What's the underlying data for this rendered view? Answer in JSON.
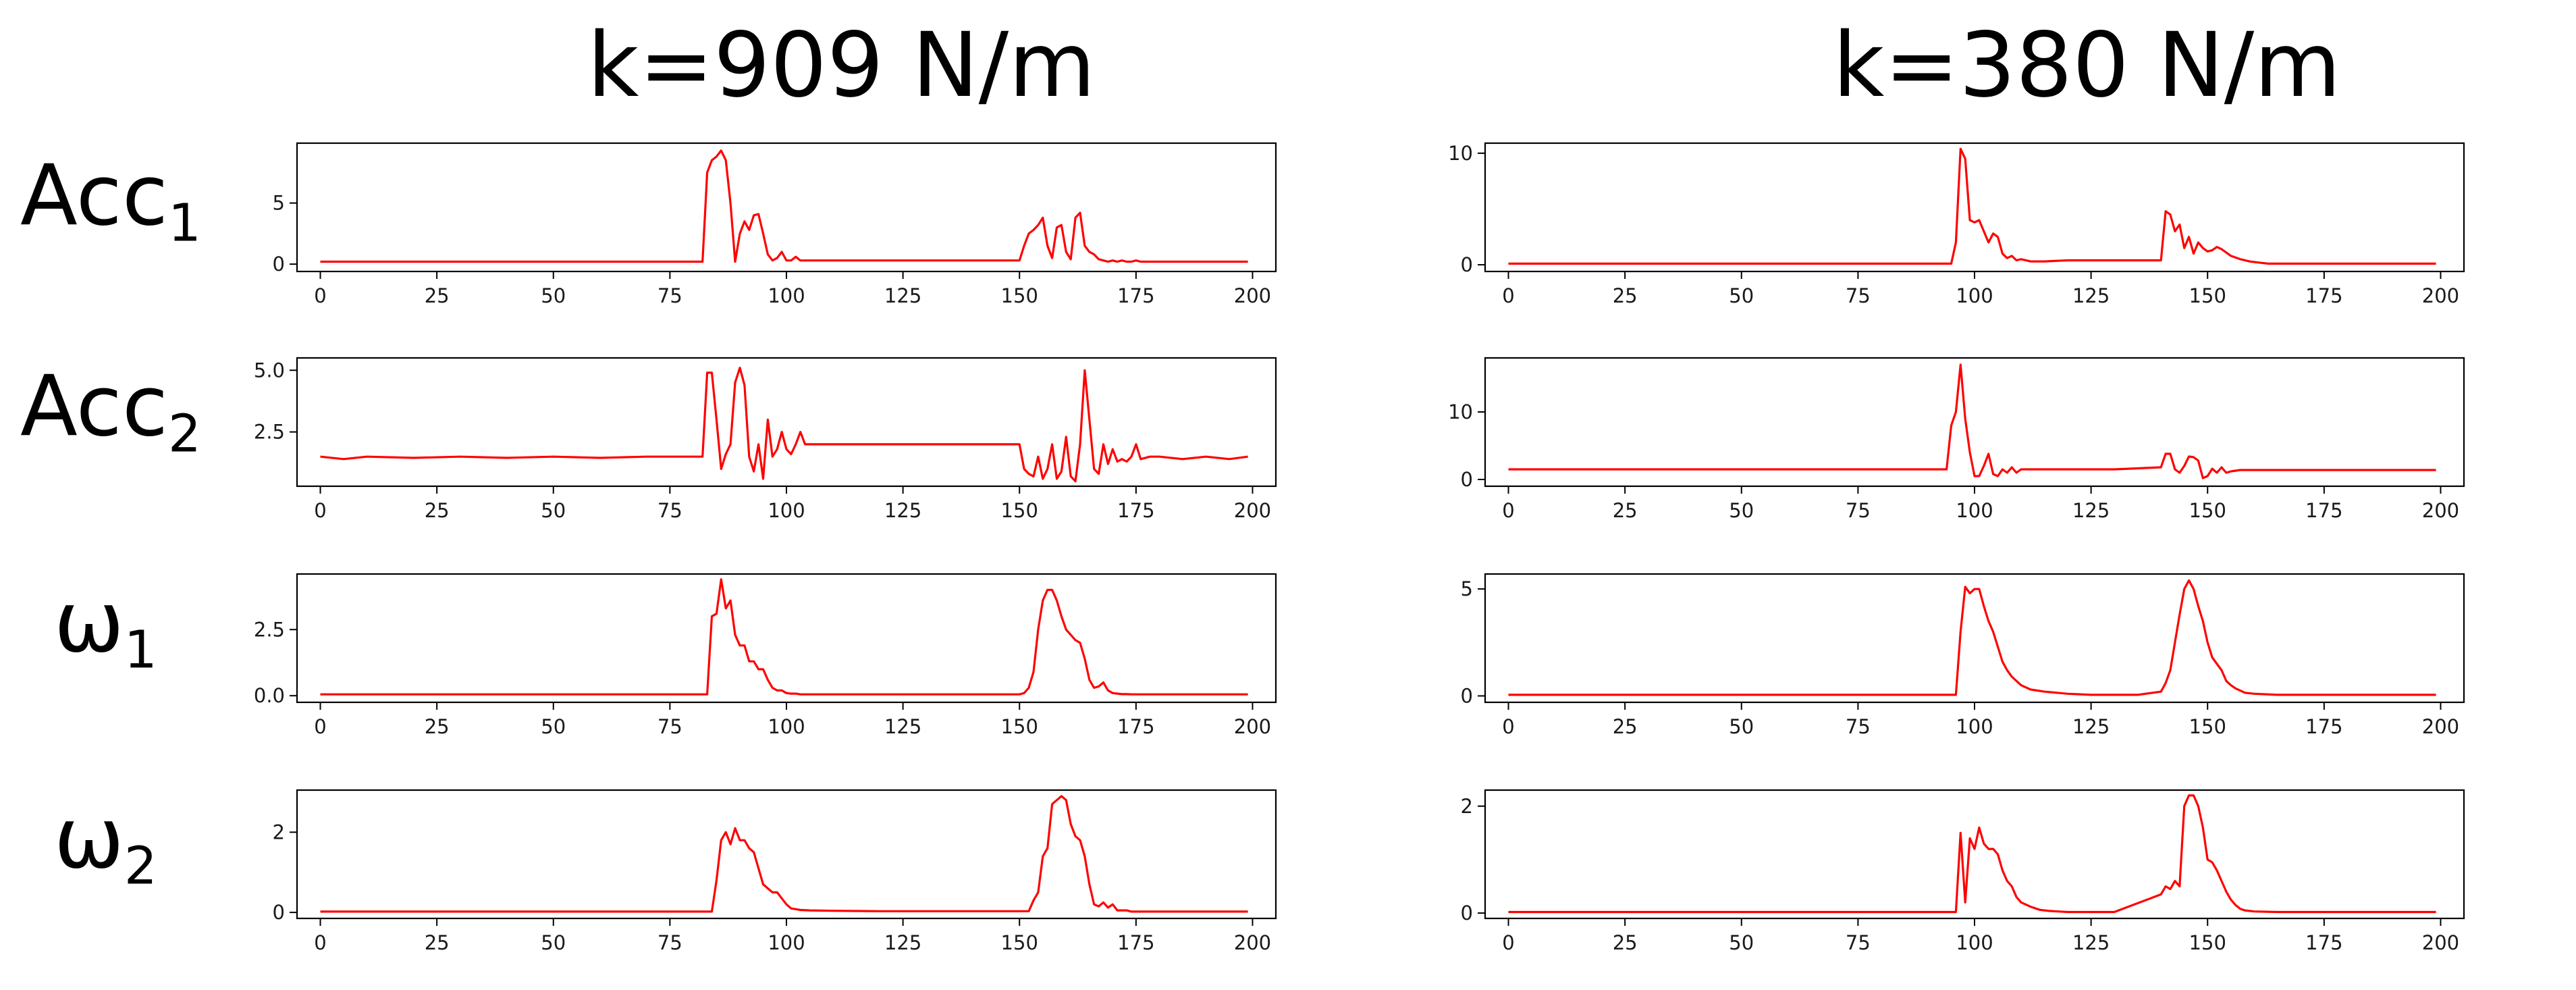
{
  "figure": {
    "column_titles": [
      "k=909 N/m",
      "k=380 N/m"
    ],
    "row_labels": [
      {
        "base": "Acc",
        "sub": "1"
      },
      {
        "base": "Acc",
        "sub": "2"
      },
      {
        "base": "ω",
        "sub": "1"
      },
      {
        "base": "ω",
        "sub": "2"
      }
    ],
    "line_color": "#ff0000"
  },
  "chart_data": [
    {
      "type": "line",
      "panel": "k909-acc1",
      "column": "k=909 N/m",
      "row": "Acc1",
      "xlim": [
        -5,
        205
      ],
      "ylim": [
        -0.6,
        9.9
      ],
      "xticks": [
        0,
        25,
        50,
        75,
        100,
        125,
        150,
        175,
        200
      ],
      "yticks": [
        0,
        5
      ],
      "series": [
        {
          "name": "Acc1",
          "x": [
            0,
            82,
            83,
            84,
            85,
            86,
            87,
            88,
            89,
            90,
            91,
            92,
            93,
            94,
            95,
            96,
            97,
            98,
            99,
            100,
            101,
            102,
            103,
            105,
            150,
            151,
            152,
            153,
            154,
            155,
            156,
            157,
            158,
            159,
            160,
            161,
            162,
            163,
            164,
            165,
            166,
            167,
            168,
            169,
            170,
            171,
            172,
            173,
            174,
            175,
            176,
            199
          ],
          "y": [
            0.2,
            0.2,
            7.5,
            8.5,
            8.8,
            9.3,
            8.5,
            5,
            0.2,
            2.5,
            3.5,
            2.8,
            4,
            4.1,
            2.5,
            0.8,
            0.3,
            0.5,
            1,
            0.3,
            0.3,
            0.6,
            0.3,
            0.3,
            0.3,
            1.5,
            2.5,
            2.8,
            3.2,
            3.8,
            1.5,
            0.5,
            3,
            3.2,
            1,
            0.4,
            3.8,
            4.2,
            1.5,
            1,
            0.8,
            0.4,
            0.3,
            0.2,
            0.3,
            0.2,
            0.3,
            0.2,
            0.2,
            0.3,
            0.2,
            0.2
          ]
        }
      ]
    },
    {
      "type": "line",
      "panel": "k380-acc1",
      "column": "k=380 N/m",
      "row": "Acc1",
      "xlim": [
        -5,
        205
      ],
      "ylim": [
        -0.6,
        10.9
      ],
      "xticks": [
        0,
        25,
        50,
        75,
        100,
        125,
        150,
        175,
        200
      ],
      "yticks": [
        0,
        10
      ],
      "series": [
        {
          "name": "Acc1",
          "x": [
            0,
            95,
            96,
            97,
            98,
            99,
            100,
            101,
            102,
            103,
            104,
            105,
            106,
            107,
            108,
            109,
            110,
            112,
            115,
            120,
            130,
            140,
            141,
            142,
            143,
            144,
            145,
            146,
            147,
            148,
            149,
            150,
            151,
            152,
            153,
            155,
            157,
            159,
            161,
            163,
            165,
            170,
            199
          ],
          "y": [
            0.1,
            0.1,
            2,
            10.4,
            9.5,
            4,
            3.8,
            4,
            3,
            2,
            2.8,
            2.5,
            1,
            0.6,
            0.8,
            0.4,
            0.5,
            0.3,
            0.3,
            0.4,
            0.4,
            0.4,
            4.8,
            4.5,
            3,
            3.6,
            1.5,
            2.5,
            1,
            2,
            1.5,
            1.2,
            1.3,
            1.6,
            1.4,
            0.8,
            0.5,
            0.3,
            0.2,
            0.1,
            0.1,
            0.1,
            0.1
          ]
        }
      ]
    },
    {
      "type": "line",
      "panel": "k909-acc2",
      "column": "k=909 N/m",
      "row": "Acc2",
      "xlim": [
        -5,
        205
      ],
      "ylim": [
        0.3,
        5.5
      ],
      "xticks": [
        0,
        25,
        50,
        75,
        100,
        125,
        150,
        175,
        200
      ],
      "yticks": [
        2.5,
        5.0
      ],
      "series": [
        {
          "name": "Acc2",
          "x": [
            0,
            5,
            10,
            20,
            30,
            40,
            50,
            60,
            70,
            80,
            82,
            83,
            84,
            85,
            86,
            87,
            88,
            89,
            90,
            91,
            92,
            93,
            94,
            95,
            96,
            97,
            98,
            99,
            100,
            101,
            102,
            103,
            104,
            110,
            120,
            130,
            140,
            150,
            151,
            152,
            153,
            154,
            155,
            156,
            157,
            158,
            159,
            160,
            161,
            162,
            163,
            164,
            165,
            166,
            167,
            168,
            169,
            170,
            171,
            172,
            173,
            174,
            175,
            176,
            178,
            180,
            185,
            190,
            195,
            199
          ],
          "y": [
            1.5,
            1.4,
            1.5,
            1.45,
            1.5,
            1.45,
            1.5,
            1.45,
            1.5,
            1.5,
            1.5,
            4.9,
            4.9,
            3,
            1,
            1.6,
            2,
            4.5,
            5.1,
            4.4,
            1.5,
            0.9,
            2,
            0.6,
            3,
            1.5,
            1.8,
            2.5,
            1.8,
            1.6,
            2,
            2.5,
            2,
            2,
            2,
            2,
            2,
            2,
            1,
            0.8,
            0.7,
            1.5,
            0.6,
            1,
            2,
            0.6,
            0.9,
            2.3,
            0.7,
            0.5,
            2,
            5,
            3,
            1,
            0.8,
            2,
            1.2,
            1.8,
            1.3,
            1.4,
            1.3,
            1.5,
            2,
            1.4,
            1.5,
            1.5,
            1.4,
            1.5,
            1.4,
            1.5
          ]
        }
      ]
    },
    {
      "type": "line",
      "panel": "k380-acc2",
      "column": "k=380 N/m",
      "row": "Acc2",
      "xlim": [
        -5,
        205
      ],
      "ylim": [
        -1.0,
        18.0
      ],
      "xticks": [
        0,
        25,
        50,
        75,
        100,
        125,
        150,
        175,
        200
      ],
      "yticks": [
        0,
        10
      ],
      "series": [
        {
          "name": "Acc2",
          "x": [
            0,
            20,
            40,
            60,
            80,
            94,
            95,
            96,
            97,
            98,
            99,
            100,
            101,
            102,
            103,
            104,
            105,
            106,
            107,
            108,
            109,
            110,
            112,
            115,
            120,
            130,
            140,
            141,
            142,
            143,
            144,
            145,
            146,
            147,
            148,
            149,
            150,
            151,
            152,
            153,
            154,
            155,
            156,
            157,
            160,
            170,
            180,
            190,
            199
          ],
          "y": [
            1.5,
            1.5,
            1.5,
            1.5,
            1.5,
            1.5,
            8,
            10,
            17,
            9,
            4,
            0.5,
            0.5,
            2,
            3.8,
            0.8,
            0.5,
            1.5,
            1,
            1.8,
            1,
            1.5,
            1.5,
            1.5,
            1.5,
            1.5,
            1.8,
            3.8,
            3.8,
            1.5,
            1,
            2,
            3.4,
            3.3,
            2.8,
            0.2,
            0.5,
            1.6,
            1,
            1.8,
            1,
            1.2,
            1.3,
            1.4,
            1.4,
            1.4,
            1.4,
            1.4,
            1.4
          ]
        }
      ]
    },
    {
      "type": "line",
      "panel": "k909-w1",
      "column": "k=909 N/m",
      "row": "ω1",
      "xlim": [
        -5,
        205
      ],
      "ylim": [
        -0.25,
        4.6
      ],
      "xticks": [
        0,
        25,
        50,
        75,
        100,
        125,
        150,
        175,
        200
      ],
      "yticks": [
        0.0,
        2.5
      ],
      "series": [
        {
          "name": "ω1",
          "x": [
            0,
            83,
            84,
            85,
            86,
            87,
            88,
            89,
            90,
            91,
            92,
            93,
            94,
            95,
            96,
            97,
            98,
            99,
            100,
            101,
            102,
            103,
            105,
            110,
            120,
            130,
            140,
            150,
            151,
            152,
            153,
            154,
            155,
            156,
            157,
            158,
            159,
            160,
            161,
            162,
            163,
            164,
            165,
            166,
            167,
            168,
            169,
            170,
            171,
            172,
            173,
            174,
            175,
            180,
            199
          ],
          "y": [
            0.05,
            0.05,
            3,
            3.1,
            4.4,
            3.3,
            3.6,
            2.3,
            1.9,
            1.9,
            1.3,
            1.3,
            1,
            1,
            0.6,
            0.3,
            0.2,
            0.2,
            0.1,
            0.08,
            0.08,
            0.05,
            0.05,
            0.05,
            0.05,
            0.05,
            0.05,
            0.05,
            0.1,
            0.3,
            0.9,
            2.5,
            3.6,
            4,
            4,
            3.6,
            3,
            2.5,
            2.3,
            2.1,
            2,
            1.4,
            0.6,
            0.3,
            0.35,
            0.5,
            0.2,
            0.1,
            0.08,
            0.06,
            0.06,
            0.05,
            0.05,
            0.05,
            0.05
          ]
        }
      ]
    },
    {
      "type": "line",
      "panel": "k380-w1",
      "column": "k=380 N/m",
      "row": "ω1",
      "xlim": [
        -5,
        205
      ],
      "ylim": [
        -0.3,
        5.7
      ],
      "xticks": [
        0,
        25,
        50,
        75,
        100,
        125,
        150,
        175,
        200
      ],
      "yticks": [
        0,
        5
      ],
      "series": [
        {
          "name": "ω1",
          "x": [
            0,
            96,
            97,
            98,
            99,
            100,
            101,
            102,
            103,
            104,
            105,
            106,
            107,
            108,
            109,
            110,
            112,
            115,
            120,
            125,
            130,
            135,
            140,
            141,
            142,
            143,
            144,
            145,
            146,
            147,
            148,
            149,
            150,
            151,
            152,
            153,
            154,
            155,
            156,
            157,
            158,
            160,
            165,
            170,
            199
          ],
          "y": [
            0.05,
            0.05,
            3,
            5.1,
            4.8,
            5,
            5,
            4.2,
            3.5,
            3,
            2.3,
            1.6,
            1.2,
            0.9,
            0.7,
            0.5,
            0.3,
            0.2,
            0.1,
            0.05,
            0.05,
            0.05,
            0.2,
            0.6,
            1.2,
            2.5,
            3.8,
            5,
            5.4,
            5,
            4.2,
            3.5,
            2.5,
            1.8,
            1.5,
            1.2,
            0.7,
            0.5,
            0.35,
            0.25,
            0.15,
            0.1,
            0.05,
            0.05,
            0.05
          ]
        }
      ]
    },
    {
      "type": "line",
      "panel": "k909-w2",
      "column": "k=909 N/m",
      "row": "ω2",
      "xlim": [
        -5,
        205
      ],
      "ylim": [
        -0.15,
        3.05
      ],
      "xticks": [
        0,
        25,
        50,
        75,
        100,
        125,
        150,
        175,
        200
      ],
      "yticks": [
        0,
        2
      ],
      "series": [
        {
          "name": "ω2",
          "x": [
            0,
            84,
            85,
            86,
            87,
            88,
            89,
            90,
            91,
            92,
            93,
            94,
            95,
            96,
            97,
            98,
            99,
            100,
            101,
            102,
            103,
            105,
            110,
            120,
            130,
            140,
            150,
            152,
            153,
            154,
            155,
            156,
            157,
            158,
            159,
            160,
            161,
            162,
            163,
            164,
            165,
            166,
            167,
            168,
            169,
            170,
            171,
            172,
            173,
            174,
            175,
            180,
            199
          ],
          "y": [
            0.02,
            0.02,
            0.8,
            1.8,
            2.0,
            1.7,
            2.1,
            1.8,
            1.8,
            1.6,
            1.5,
            1.1,
            0.7,
            0.6,
            0.5,
            0.5,
            0.35,
            0.2,
            0.1,
            0.08,
            0.06,
            0.05,
            0.04,
            0.03,
            0.03,
            0.03,
            0.03,
            0.03,
            0.3,
            0.5,
            1.4,
            1.6,
            2.7,
            2.8,
            2.9,
            2.8,
            2.2,
            1.9,
            1.8,
            1.4,
            0.7,
            0.2,
            0.15,
            0.25,
            0.12,
            0.2,
            0.05,
            0.05,
            0.05,
            0.02,
            0.02,
            0.02,
            0.02
          ]
        }
      ]
    },
    {
      "type": "line",
      "panel": "k380-w2",
      "column": "k=380 N/m",
      "row": "ω2",
      "xlim": [
        -5,
        205
      ],
      "ylim": [
        -0.1,
        2.3
      ],
      "xticks": [
        0,
        25,
        50,
        75,
        100,
        125,
        150,
        175,
        200
      ],
      "yticks": [
        0,
        2
      ],
      "series": [
        {
          "name": "ω2",
          "x": [
            0,
            96,
            97,
            98,
            99,
            100,
            101,
            102,
            103,
            104,
            105,
            106,
            107,
            108,
            109,
            110,
            112,
            114,
            116,
            118,
            120,
            125,
            130,
            140,
            141,
            142,
            143,
            144,
            145,
            146,
            147,
            148,
            149,
            150,
            151,
            152,
            153,
            154,
            155,
            156,
            157,
            158,
            160,
            165,
            199
          ],
          "y": [
            0.02,
            0.02,
            1.5,
            0.2,
            1.4,
            1.2,
            1.6,
            1.3,
            1.2,
            1.2,
            1.1,
            0.8,
            0.6,
            0.5,
            0.3,
            0.2,
            0.12,
            0.06,
            0.04,
            0.03,
            0.02,
            0.02,
            0.02,
            0.35,
            0.5,
            0.45,
            0.6,
            0.5,
            2.0,
            2.2,
            2.2,
            2.0,
            1.6,
            1.0,
            0.95,
            0.8,
            0.6,
            0.4,
            0.25,
            0.15,
            0.08,
            0.05,
            0.03,
            0.02,
            0.02
          ]
        }
      ]
    }
  ]
}
